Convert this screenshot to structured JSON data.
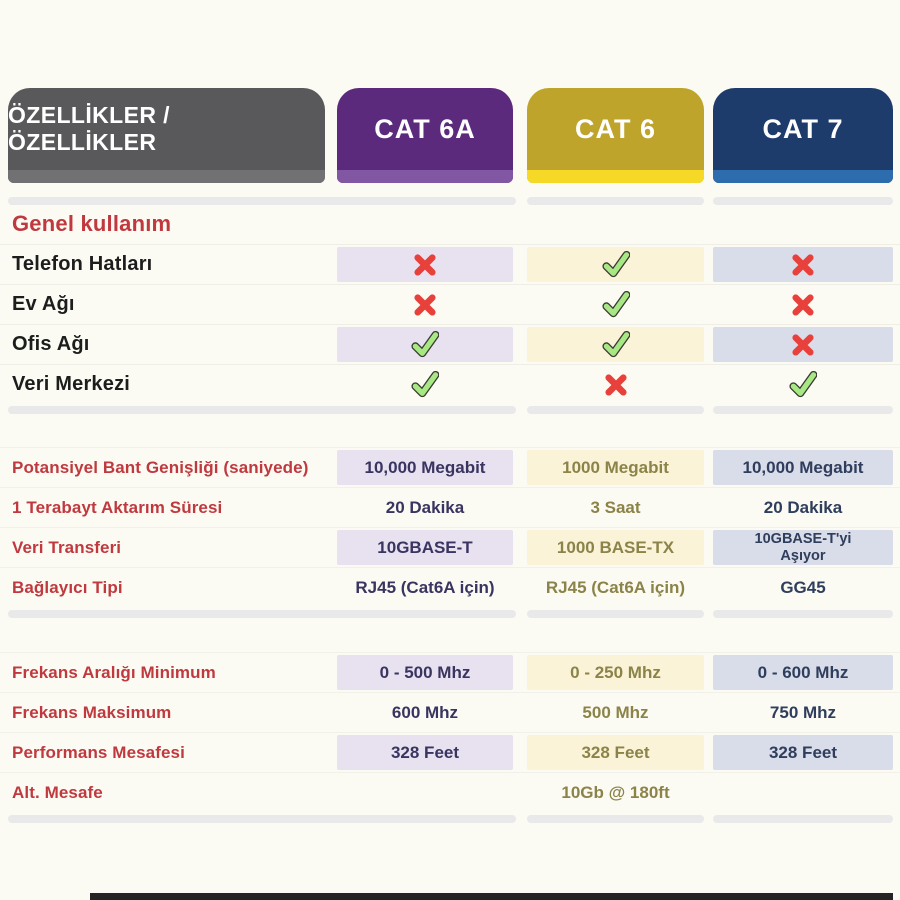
{
  "header": {
    "features_label": "ÖZELLİKLER / ÖZELLİKLER"
  },
  "chart_data": {
    "type": "table",
    "title": "ÖZELLİKLER / ÖZELLİKLER",
    "columns": [
      "CAT 6A",
      "CAT 6",
      "CAT 7"
    ],
    "legend_position": "top",
    "sections": [
      {
        "heading": "Genel kullanım",
        "kind": "marks",
        "rows": [
          {
            "label": "Telefon Hatları",
            "values": [
              "cross",
              "check",
              "cross"
            ]
          },
          {
            "label": "Ev Ağı",
            "values": [
              "cross",
              "check",
              "cross"
            ]
          },
          {
            "label": "Ofis Ağı",
            "values": [
              "check",
              "check",
              "cross"
            ]
          },
          {
            "label": "Veri Merkezi",
            "values": [
              "check",
              "cross",
              "check"
            ]
          }
        ]
      },
      {
        "kind": "text",
        "rows": [
          {
            "label": "Potansiyel Bant Genişliği (saniyede)",
            "values": [
              "10,000 Megabit",
              "1000 Megabit",
              "10,000 Megabit"
            ]
          },
          {
            "label": "1 Terabayt Aktarım Süresi",
            "values": [
              "20 Dakika",
              "3 Saat",
              "20 Dakika"
            ]
          },
          {
            "label": "Veri Transferi",
            "values": [
              "10GBASE-T",
              "1000 BASE-TX",
              "10GBASE-T'yi\nAşıyor"
            ]
          },
          {
            "label": "Bağlayıcı Tipi",
            "values": [
              "RJ45 (Cat6A için)",
              "RJ45 (Cat6A için)",
              "GG45"
            ]
          }
        ]
      },
      {
        "kind": "text",
        "rows": [
          {
            "label": "Frekans Aralığı Minimum",
            "values": [
              "0 - 500 Mhz",
              "0 - 250 Mhz",
              "0 - 600 Mhz"
            ]
          },
          {
            "label": "Frekans Maksimum",
            "values": [
              "600 Mhz",
              "500 Mhz",
              "750 Mhz"
            ]
          },
          {
            "label": "Performans Mesafesi",
            "values": [
              "328 Feet",
              "328 Feet",
              "328 Feet"
            ]
          },
          {
            "label": "Alt. Mesafe",
            "values": [
              "",
              "10Gb @ 180ft",
              ""
            ]
          }
        ]
      }
    ]
  },
  "icons": {
    "check": "check-icon",
    "cross": "cross-icon"
  },
  "colors": {
    "page_bg": "#fbfbf4",
    "heading_red": "#c0393f",
    "label_dark": "#1d1d1d",
    "divider": "#e9e9e9",
    "footer_bar": "#242424",
    "cross_red": "#e8403a",
    "check_green": "#a7e784",
    "check_outline": "#3a3a32",
    "tab_features": {
      "bg": "#59595b",
      "strip": "#717174"
    },
    "columns": [
      {
        "bg": "#5b2a7c",
        "strip": "#8157a3",
        "band": "#e7e1f0",
        "text": "#3a3460"
      },
      {
        "bg": "#bfa42c",
        "strip": "#f6d827",
        "band": "#faf3d8",
        "text": "#8b8348"
      },
      {
        "bg": "#1d3c6c",
        "strip": "#2e6dad",
        "band": "#d9dce9",
        "text": "#2f3e5c"
      }
    ]
  }
}
